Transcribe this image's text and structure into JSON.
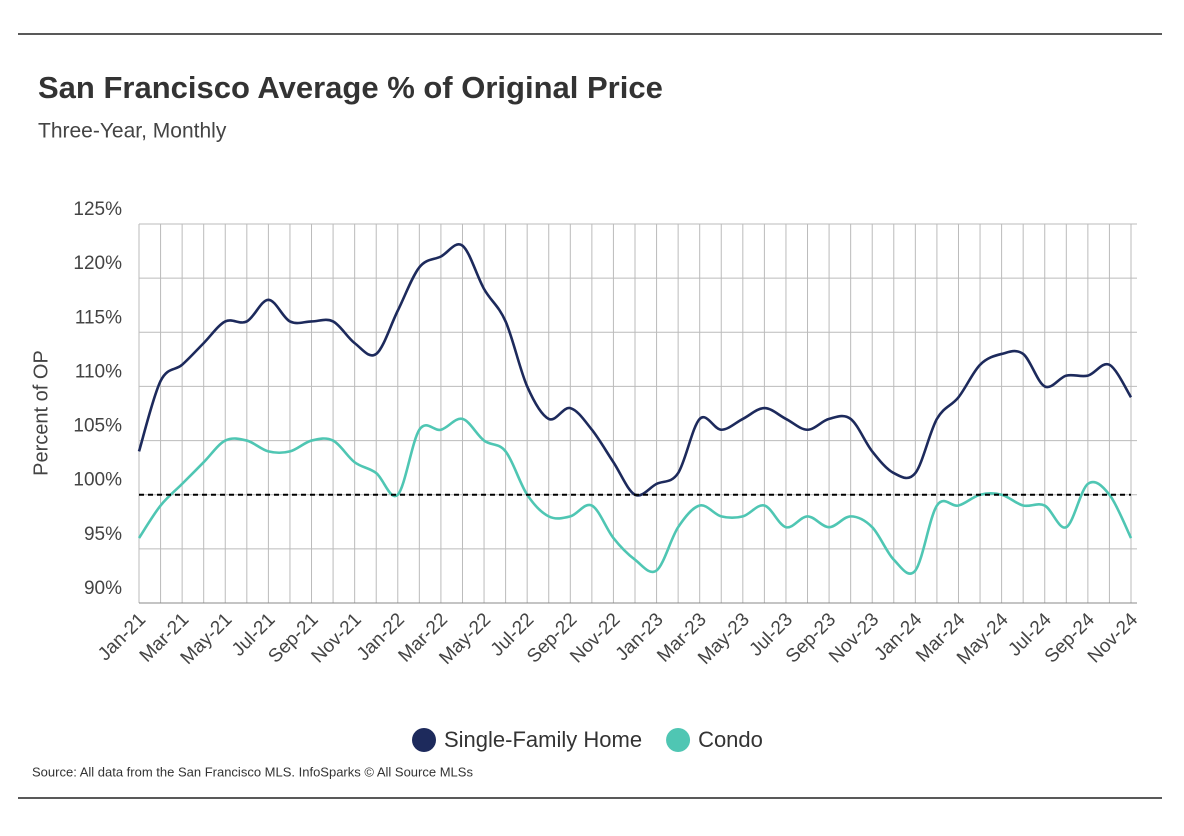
{
  "chart_data": {
    "type": "line",
    "title": "San Francisco Average % of Original Price",
    "subtitle": "Three-Year, Monthly",
    "y_label": "Percent of OP",
    "source": "Source:  All data from the San Francisco MLS. InfoSparks © All Source MLSs",
    "categories": [
      "Jan-21",
      null,
      "Mar-21",
      null,
      "May-21",
      null,
      "Jul-21",
      null,
      "Sep-21",
      null,
      "Nov-21",
      null,
      "Jan-22",
      null,
      "Mar-22",
      null,
      "May-22",
      null,
      "Jul-22",
      null,
      "Sep-22",
      null,
      "Nov-22",
      null,
      "Jan-23",
      null,
      "Mar-23",
      null,
      "May-23",
      null,
      "Jul-23",
      null,
      "Sep-23",
      null,
      "Nov-23",
      null,
      "Jan-24",
      null,
      "Mar-24",
      null,
      "May-24",
      null,
      "Jul-24",
      null,
      "Sep-24",
      null,
      "Nov-24"
    ],
    "series": [
      {
        "name": "Single-Family Home",
        "color": "#1d2a5c",
        "values": [
          104,
          110.5,
          112,
          114,
          116,
          116,
          118,
          116,
          116,
          116,
          114,
          113,
          117,
          121,
          122,
          123,
          119,
          116,
          110,
          107,
          108,
          106,
          103,
          100,
          101,
          102,
          107,
          106,
          107,
          108,
          107,
          106,
          107,
          107,
          104,
          102,
          102,
          107,
          109,
          112,
          113,
          113,
          110,
          111,
          111,
          112,
          109
        ]
      },
      {
        "name": "Condo",
        "color": "#4fc6b3",
        "values": [
          96,
          99,
          101,
          103,
          105,
          105,
          104,
          104,
          105,
          105,
          103,
          102,
          100,
          106,
          106,
          107,
          105,
          104,
          100,
          98,
          98,
          99,
          96,
          94,
          93,
          97,
          99,
          98,
          98,
          99,
          97,
          98,
          97,
          98,
          97,
          94,
          93,
          99,
          99,
          100,
          100,
          99,
          99,
          97,
          101,
          100,
          96
        ]
      }
    ],
    "reference_line": 100,
    "ylim": [
      90,
      125
    ],
    "yticks": [
      {
        "value": 90,
        "label": "90%"
      },
      {
        "value": 95,
        "label": "95%"
      },
      {
        "value": 100,
        "label": "100%"
      },
      {
        "value": 105,
        "label": "105%"
      },
      {
        "value": 110,
        "label": "110%"
      },
      {
        "value": 115,
        "label": "115%"
      },
      {
        "value": 120,
        "label": "120%"
      },
      {
        "value": 125,
        "label": "125%"
      }
    ],
    "grid": true,
    "legend": "bottom"
  }
}
